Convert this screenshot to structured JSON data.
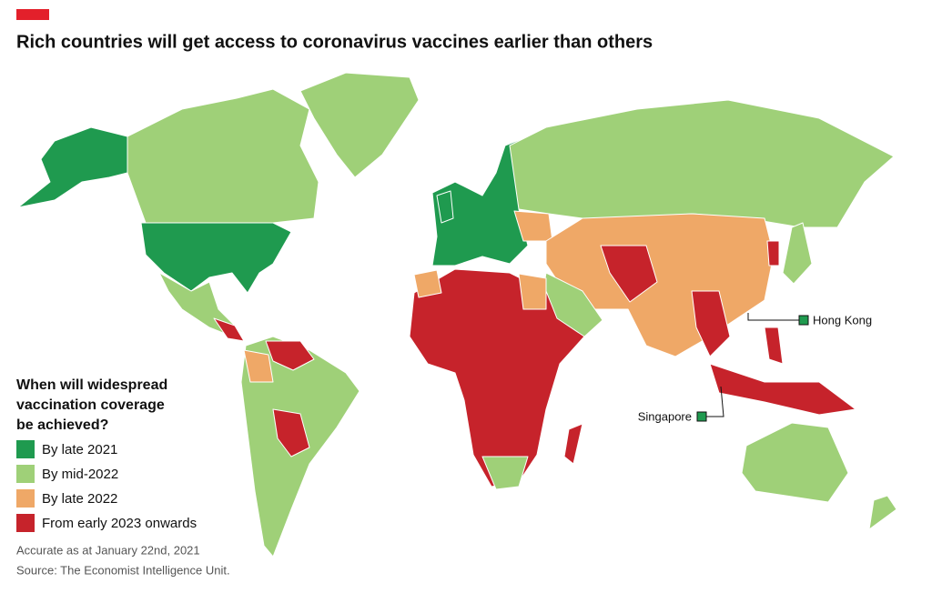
{
  "header": {
    "title": "Rich countries will get access to coronavirus vaccines earlier than others"
  },
  "legend": {
    "title": [
      "When will widespread",
      "vaccination coverage",
      "be achieved?"
    ],
    "items": [
      {
        "label": "By late 2021",
        "color": "#1f9a4f"
      },
      {
        "label": "By mid-2022",
        "color": "#9fd078"
      },
      {
        "label": "By late 2022",
        "color": "#efa867"
      },
      {
        "label": "From early 2023 onwards",
        "color": "#c6232b"
      }
    ]
  },
  "annotations": [
    {
      "label": "Hong Kong",
      "category": 0
    },
    {
      "label": "Singapore",
      "category": 0
    }
  ],
  "notes": [
    "Accurate as at January 22nd, 2021",
    "Source: The Economist Intelligence Unit."
  ]
}
